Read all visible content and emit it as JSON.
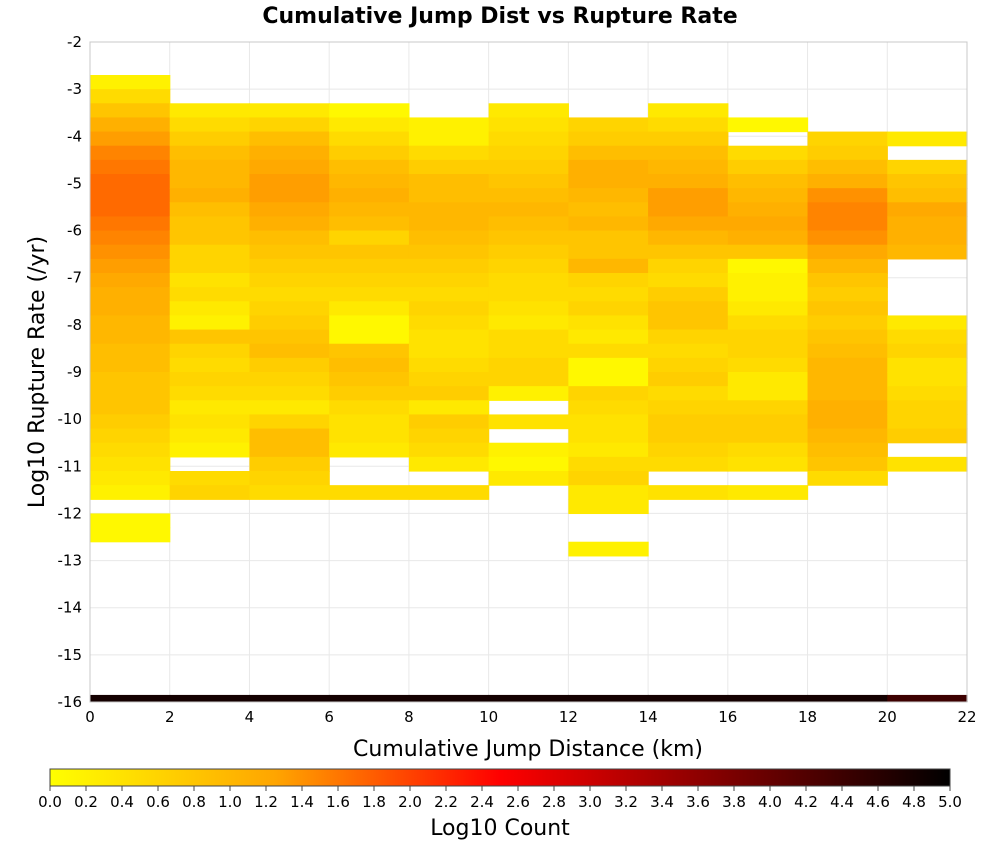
{
  "chart_data": {
    "type": "heatmap",
    "title": "Cumulative Jump Dist vs Rupture Rate",
    "xlabel": "Cumulative Jump Distance (km)",
    "ylabel": "Log10 Rupture Rate (/yr)",
    "xlim": [
      0,
      22
    ],
    "ylim": [
      -16,
      -2
    ],
    "x_ticks": [
      "0",
      "2",
      "4",
      "6",
      "8",
      "10",
      "12",
      "14",
      "16",
      "18",
      "20",
      "22"
    ],
    "y_ticks": [
      "-2",
      "-3",
      "-4",
      "-5",
      "-6",
      "-7",
      "-8",
      "-9",
      "-10",
      "-11",
      "-12",
      "-13",
      "-14",
      "-15",
      "-16"
    ],
    "x_bin_width": 2,
    "y_bin_height": 0.3,
    "grid": true,
    "colorbar": {
      "label": "Log10 Count",
      "min": 0.0,
      "max": 5.0,
      "ticks": [
        "0.0",
        "0.2",
        "0.4",
        "0.6",
        "0.8",
        "1.0",
        "1.2",
        "1.4",
        "1.6",
        "1.8",
        "2.0",
        "2.2",
        "2.4",
        "2.6",
        "2.8",
        "3.0",
        "3.2",
        "3.4",
        "3.6",
        "3.8",
        "4.0",
        "4.2",
        "4.4",
        "4.6",
        "4.8",
        "5.0"
      ],
      "colors": [
        "#ffff00",
        "#ffa500",
        "#ff0000",
        "#7f0000",
        "#000000"
      ]
    },
    "columns": [
      {
        "x0": 0,
        "y_top": -2.7,
        "values": [
          0.2,
          0.5,
          0.8,
          1.1,
          1.3,
          1.5,
          1.6,
          1.7,
          1.7,
          1.7,
          1.6,
          1.5,
          1.4,
          1.3,
          1.2,
          1.1,
          1.1,
          1.0,
          1.0,
          0.9,
          0.9,
          0.8,
          0.8,
          0.8,
          0.7,
          0.6,
          0.5,
          0.4,
          0.3,
          0.2,
          null,
          0.1,
          0.1
        ]
      },
      {
        "x0": 2,
        "y_top": -3.3,
        "values": [
          0.3,
          0.5,
          0.7,
          0.9,
          1.0,
          1.0,
          1.1,
          0.9,
          0.8,
          0.8,
          0.6,
          0.6,
          0.4,
          0.5,
          0.3,
          0.2,
          0.8,
          0.6,
          0.5,
          0.6,
          0.5,
          0.3,
          0.4,
          0.3,
          0.2,
          null,
          0.5,
          0.6
        ]
      },
      {
        "x0": 4,
        "y_top": -3.3,
        "values": [
          0.3,
          0.6,
          0.9,
          1.1,
          1.2,
          1.3,
          1.3,
          1.2,
          1.1,
          0.9,
          0.8,
          0.7,
          0.6,
          0.5,
          0.6,
          0.7,
          0.8,
          0.9,
          0.7,
          0.6,
          0.5,
          0.3,
          0.6,
          0.9,
          0.9,
          0.7,
          0.6,
          0.5
        ]
      },
      {
        "x0": 6,
        "y_top": -3.3,
        "values": [
          0.1,
          0.3,
          0.5,
          0.7,
          0.9,
          1.0,
          1.1,
          1.0,
          0.9,
          0.6,
          0.8,
          0.7,
          0.6,
          0.5,
          0.3,
          0.1,
          0.1,
          0.8,
          0.9,
          0.8,
          0.7,
          0.5,
          0.4,
          0.4,
          0.3,
          null,
          null,
          0.5
        ]
      },
      {
        "x0": 8,
        "y_top": -3.6,
        "values": [
          0.2,
          0.2,
          0.5,
          0.7,
          0.9,
          0.9,
          1.0,
          1.0,
          0.9,
          0.8,
          0.7,
          0.6,
          0.5,
          0.6,
          0.5,
          0.4,
          0.4,
          0.5,
          0.6,
          0.7,
          0.3,
          0.7,
          0.6,
          0.5,
          0.3,
          null,
          0.5
        ]
      },
      {
        "x0": 10,
        "y_top": -3.3,
        "values": [
          0.3,
          0.4,
          0.5,
          0.6,
          0.7,
          0.8,
          0.9,
          1.0,
          0.9,
          0.8,
          0.7,
          0.6,
          0.5,
          0.5,
          0.4,
          0.3,
          0.5,
          0.5,
          0.6,
          0.6,
          0.2,
          null,
          0.4,
          null,
          0.2,
          0.1,
          0.3
        ]
      },
      {
        "x0": 12,
        "y_top": -3.6,
        "values": [
          0.6,
          0.7,
          0.9,
          1.1,
          1.1,
          1.0,
          0.9,
          1.0,
          0.8,
          0.8,
          1.0,
          0.6,
          0.5,
          0.6,
          0.4,
          0.3,
          0.5,
          0.1,
          0.1,
          0.6,
          0.5,
          0.4,
          0.4,
          0.3,
          0.5,
          0.6,
          0.3,
          0.3,
          null,
          null,
          0.2
        ]
      },
      {
        "x0": 14,
        "y_top": -3.3,
        "values": [
          0.3,
          0.5,
          0.7,
          0.9,
          1.0,
          1.1,
          1.3,
          1.3,
          1.2,
          1.0,
          0.8,
          0.6,
          0.5,
          0.7,
          0.8,
          0.8,
          0.6,
          0.5,
          0.6,
          0.7,
          0.5,
          0.6,
          0.7,
          0.7,
          0.6,
          0.5,
          null,
          0.4
        ]
      },
      {
        "x0": 16,
        "y_top": -3.6,
        "values": [
          0.1,
          null,
          0.5,
          0.7,
          0.9,
          1.0,
          1.1,
          1.2,
          1.1,
          0.8,
          0.1,
          0.2,
          0.2,
          0.3,
          0.5,
          0.6,
          0.6,
          0.5,
          0.3,
          0.3,
          0.6,
          0.7,
          0.7,
          0.5,
          0.4,
          null,
          0.3
        ]
      },
      {
        "x0": 18,
        "y_top": -3.9,
        "values": [
          0.6,
          0.7,
          0.9,
          1.1,
          1.4,
          1.5,
          1.5,
          1.4,
          1.2,
          1.0,
          0.8,
          0.7,
          0.8,
          0.7,
          0.8,
          0.9,
          1.0,
          1.0,
          1.0,
          1.1,
          1.1,
          1.0,
          0.9,
          0.8,
          0.5
        ]
      },
      {
        "x0": 20,
        "y_top": -3.9,
        "values": [
          0.3,
          null,
          0.6,
          0.8,
          0.9,
          1.2,
          1.1,
          1.1,
          1.0,
          null,
          null,
          null,
          null,
          0.3,
          0.5,
          0.6,
          0.4,
          0.4,
          0.5,
          0.6,
          0.6,
          0.7,
          null,
          0.4
        ]
      }
    ],
    "bottom_row": {
      "y_bottom": -16,
      "y_top": -15.85,
      "values": [
        4.8,
        4.8,
        4.8,
        4.8,
        4.8,
        4.8,
        4.8,
        4.8,
        4.8,
        4.8,
        4.4
      ]
    }
  }
}
